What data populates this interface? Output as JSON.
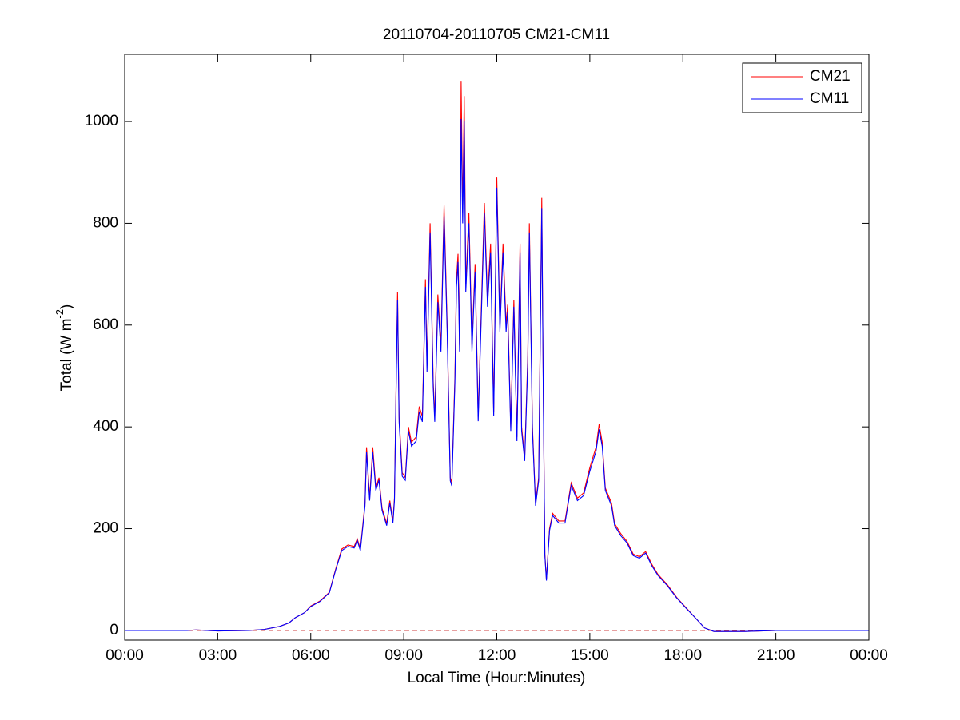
{
  "chart_data": {
    "type": "line",
    "title": "20110704-20110705 CM21-CM11",
    "xlabel": "Local Time (Hour:Minutes)",
    "ylabel": [
      "Total (W m",
      "-2",
      ")"
    ],
    "x": [
      0,
      2,
      2.3,
      3,
      4,
      4.5,
      5,
      5.3,
      5.5,
      5.8,
      6,
      6.3,
      6.6,
      6.8,
      7,
      7.2,
      7.4,
      7.5,
      7.6,
      7.75,
      7.8,
      7.9,
      8,
      8.1,
      8.2,
      8.3,
      8.45,
      8.55,
      8.65,
      8.7,
      8.75,
      8.8,
      8.85,
      8.95,
      9.05,
      9.15,
      9.25,
      9.4,
      9.5,
      9.6,
      9.7,
      9.75,
      9.85,
      9.95,
      10,
      10.1,
      10.2,
      10.3,
      10.4,
      10.5,
      10.55,
      10.65,
      10.7,
      10.75,
      10.8,
      10.85,
      10.9,
      10.95,
      11,
      11.1,
      11.2,
      11.3,
      11.4,
      11.5,
      11.6,
      11.7,
      11.8,
      11.9,
      12,
      12.1,
      12.2,
      12.3,
      12.35,
      12.45,
      12.55,
      12.65,
      12.75,
      12.8,
      12.9,
      13,
      13.05,
      13.15,
      13.25,
      13.35,
      13.45,
      13.5,
      13.55,
      13.6,
      13.7,
      13.8,
      14,
      14.2,
      14.4,
      14.6,
      14.8,
      15,
      15.2,
      15.3,
      15.4,
      15.5,
      15.7,
      15.8,
      16,
      16.2,
      16.4,
      16.6,
      16.8,
      17,
      17.2,
      17.5,
      17.8,
      18.1,
      18.4,
      18.7,
      19,
      20,
      21,
      22,
      24
    ],
    "series": [
      {
        "name": "CM21",
        "color": "#ff0000",
        "values": [
          0,
          0,
          1,
          -1,
          0,
          2,
          8,
          15,
          25,
          35,
          48,
          58,
          75,
          120,
          160,
          168,
          165,
          180,
          160,
          250,
          360,
          260,
          360,
          280,
          300,
          240,
          210,
          255,
          215,
          260,
          470,
          665,
          420,
          310,
          300,
          400,
          370,
          380,
          440,
          420,
          690,
          520,
          800,
          490,
          420,
          660,
          560,
          835,
          600,
          300,
          290,
          500,
          690,
          740,
          560,
          1080,
          820,
          1050,
          680,
          820,
          560,
          720,
          420,
          630,
          840,
          650,
          760,
          430,
          890,
          600,
          760,
          600,
          640,
          400,
          650,
          380,
          760,
          400,
          340,
          540,
          800,
          400,
          250,
          300,
          850,
          470,
          150,
          100,
          200,
          230,
          215,
          215,
          290,
          260,
          270,
          320,
          360,
          405,
          370,
          280,
          250,
          210,
          190,
          175,
          150,
          145,
          155,
          130,
          110,
          90,
          65,
          45,
          25,
          5,
          -2,
          -2,
          0,
          0,
          0
        ]
      },
      {
        "name": "CM11",
        "color": "#0000ff",
        "values": [
          0,
          0,
          1,
          -1,
          0,
          2,
          8,
          15,
          25,
          35,
          47,
          57,
          74,
          118,
          157,
          165,
          162,
          177,
          157,
          245,
          350,
          255,
          350,
          275,
          295,
          236,
          206,
          250,
          211,
          255,
          460,
          650,
          410,
          303,
          295,
          392,
          362,
          372,
          430,
          410,
          675,
          508,
          782,
          478,
          410,
          645,
          548,
          815,
          587,
          294,
          284,
          488,
          675,
          724,
          548,
          1005,
          800,
          1000,
          665,
          800,
          548,
          705,
          411,
          616,
          820,
          636,
          743,
          421,
          870,
          587,
          743,
          587,
          626,
          392,
          636,
          372,
          743,
          392,
          333,
          528,
          782,
          392,
          245,
          294,
          830,
          460,
          147,
          98,
          196,
          226,
          211,
          211,
          285,
          255,
          265,
          313,
          352,
          395,
          362,
          275,
          245,
          206,
          186,
          172,
          147,
          142,
          152,
          127,
          108,
          88,
          64,
          44,
          25,
          5,
          -2,
          -2,
          0,
          0,
          0
        ]
      }
    ],
    "reference_line": {
      "value": 0,
      "color": "#c00000"
    },
    "xlim": [
      0,
      24
    ],
    "xticks": [
      {
        "value": 0,
        "label": "00:00"
      },
      {
        "value": 3,
        "label": "03:00"
      },
      {
        "value": 6,
        "label": "06:00"
      },
      {
        "value": 9,
        "label": "09:00"
      },
      {
        "value": 12,
        "label": "12:00"
      },
      {
        "value": 15,
        "label": "15:00"
      },
      {
        "value": 18,
        "label": "18:00"
      },
      {
        "value": 21,
        "label": "21:00"
      },
      {
        "value": 24,
        "label": "00:00"
      }
    ],
    "ylim": [
      -19,
      1132
    ],
    "yticks": [
      0,
      200,
      400,
      600,
      800,
      1000
    ],
    "grid": false,
    "legend": "upper right"
  }
}
